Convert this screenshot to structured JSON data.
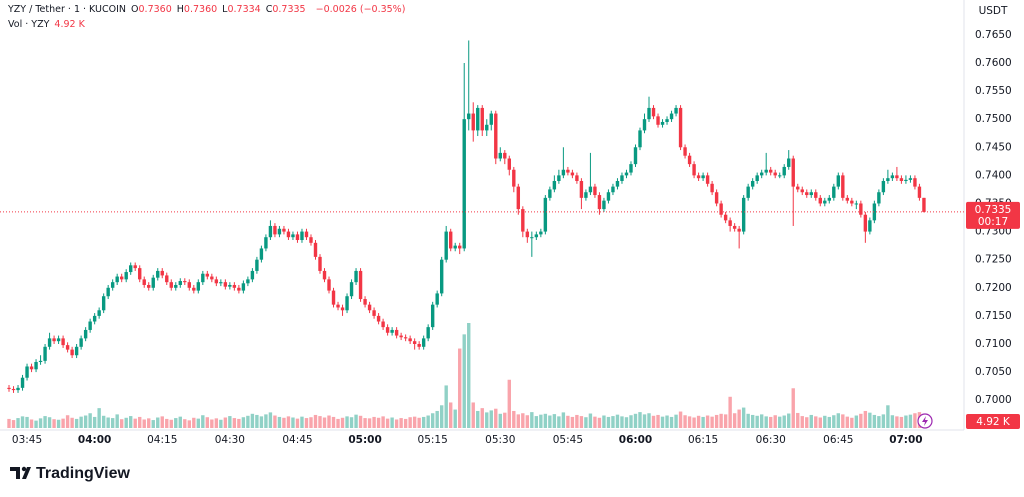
{
  "chart_data": {
    "type": "candlestick",
    "header": {
      "symbol": "YZY / Tether · 1 · KUCOIN",
      "fields": [
        {
          "key": "O",
          "label": "0.7360"
        },
        {
          "key": "H",
          "label": "0.7360"
        },
        {
          "key": "L",
          "label": "0.7334"
        },
        {
          "key": "C",
          "label": "0.7335"
        }
      ],
      "change": "−0.0026 (−0.35%)",
      "volume_title": "Vol · YZY"
    },
    "currency": "USDT",
    "countdown": "00:17",
    "volume_label": "4.92 K",
    "brand": "TradingView",
    "up_color": "#089981",
    "down_color": "#f23645",
    "grid": false,
    "xlim": [
      219,
      432
    ],
    "xticks": [
      {
        "value": 225,
        "label": "03:45"
      },
      {
        "value": 240,
        "label": "04:00"
      },
      {
        "value": 255,
        "label": "04:15"
      },
      {
        "value": 270,
        "label": "04:30"
      },
      {
        "value": 285,
        "label": "04:45"
      },
      {
        "value": 300,
        "label": "05:00"
      },
      {
        "value": 315,
        "label": "05:15"
      },
      {
        "value": 330,
        "label": "05:30"
      },
      {
        "value": 345,
        "label": "05:45"
      },
      {
        "value": 360,
        "label": "06:00"
      },
      {
        "value": 375,
        "label": "06:15"
      },
      {
        "value": 390,
        "label": "06:30"
      },
      {
        "value": 405,
        "label": "06:45"
      },
      {
        "value": 420,
        "label": "07:00"
      }
    ],
    "ylim": [
      0.6947,
      0.7712
    ],
    "yticks": [
      {
        "value": 0.7,
        "label": "0.7000"
      },
      {
        "value": 0.705,
        "label": "0.7050"
      },
      {
        "value": 0.71,
        "label": "0.7100"
      },
      {
        "value": 0.715,
        "label": "0.7150"
      },
      {
        "value": 0.72,
        "label": "0.7200"
      },
      {
        "value": 0.725,
        "label": "0.7250"
      },
      {
        "value": 0.73,
        "label": "0.7300"
      },
      {
        "value": 0.735,
        "label": "0.7350"
      },
      {
        "value": 0.74,
        "label": "0.7400"
      },
      {
        "value": 0.745,
        "label": "0.7450"
      },
      {
        "value": 0.75,
        "label": "0.7500"
      },
      {
        "value": 0.755,
        "label": "0.7550"
      },
      {
        "value": 0.76,
        "label": "0.7600"
      },
      {
        "value": 0.765,
        "label": "0.7650"
      }
    ],
    "x": [
      221,
      222,
      223,
      224,
      225,
      226,
      227,
      228,
      229,
      230,
      231,
      232,
      233,
      234,
      235,
      236,
      237,
      238,
      239,
      240,
      241,
      242,
      243,
      244,
      245,
      246,
      247,
      248,
      249,
      250,
      251,
      252,
      253,
      254,
      255,
      256,
      257,
      258,
      259,
      260,
      261,
      262,
      263,
      264,
      265,
      266,
      267,
      268,
      269,
      270,
      271,
      272,
      273,
      274,
      275,
      276,
      277,
      278,
      279,
      280,
      281,
      282,
      283,
      284,
      285,
      286,
      287,
      288,
      289,
      290,
      291,
      292,
      293,
      294,
      295,
      296,
      297,
      298,
      299,
      300,
      301,
      302,
      303,
      304,
      305,
      306,
      307,
      308,
      309,
      310,
      311,
      312,
      313,
      314,
      315,
      316,
      317,
      318,
      319,
      320,
      321,
      322,
      323,
      324,
      325,
      326,
      327,
      328,
      329,
      330,
      331,
      332,
      333,
      334,
      335,
      336,
      337,
      338,
      339,
      340,
      341,
      342,
      343,
      344,
      345,
      346,
      347,
      348,
      349,
      350,
      351,
      352,
      353,
      354,
      355,
      356,
      357,
      358,
      359,
      360,
      361,
      362,
      363,
      364,
      365,
      366,
      367,
      368,
      369,
      370,
      371,
      372,
      373,
      374,
      375,
      376,
      377,
      378,
      379,
      380,
      381,
      382,
      383,
      384,
      385,
      386,
      387,
      388,
      389,
      390,
      391,
      392,
      393,
      394,
      395,
      396,
      397,
      398,
      399,
      400,
      401,
      402,
      403,
      404,
      405,
      406,
      407,
      408,
      409,
      410,
      411,
      412,
      413,
      414,
      415,
      416,
      417,
      418,
      419,
      420,
      421,
      422,
      423,
      424
    ],
    "open": [
      0.7022,
      0.702,
      0.7018,
      0.7022,
      0.704,
      0.706,
      0.7055,
      0.7068,
      0.707,
      0.7095,
      0.711,
      0.7105,
      0.711,
      0.7098,
      0.709,
      0.708,
      0.7095,
      0.711,
      0.7125,
      0.714,
      0.715,
      0.716,
      0.7185,
      0.72,
      0.721,
      0.722,
      0.7215,
      0.7228,
      0.724,
      0.7235,
      0.7215,
      0.7205,
      0.72,
      0.7218,
      0.723,
      0.7222,
      0.721,
      0.72,
      0.7205,
      0.7212,
      0.721,
      0.72,
      0.7195,
      0.721,
      0.7225,
      0.722,
      0.7215,
      0.7208,
      0.721,
      0.7202,
      0.7205,
      0.72,
      0.7195,
      0.7208,
      0.7215,
      0.723,
      0.725,
      0.727,
      0.729,
      0.731,
      0.7295,
      0.7305,
      0.73,
      0.729,
      0.7295,
      0.7285,
      0.73,
      0.729,
      0.728,
      0.7255,
      0.723,
      0.7215,
      0.7195,
      0.717,
      0.7165,
      0.716,
      0.7185,
      0.721,
      0.723,
      0.718,
      0.717,
      0.716,
      0.715,
      0.714,
      0.713,
      0.712,
      0.7125,
      0.7115,
      0.7112,
      0.711,
      0.7105,
      0.71,
      0.7095,
      0.711,
      0.713,
      0.717,
      0.719,
      0.725,
      0.73,
      0.727,
      0.7275,
      0.727,
      0.75,
      0.751,
      0.748,
      0.752,
      0.748,
      0.749,
      0.751,
      0.743,
      0.744,
      0.743,
      0.741,
      0.738,
      0.734,
      0.73,
      0.729,
      0.729,
      0.7295,
      0.73,
      0.736,
      0.7375,
      0.739,
      0.74,
      0.741,
      0.7405,
      0.74,
      0.739,
      0.736,
      0.737,
      0.738,
      0.7365,
      0.734,
      0.7355,
      0.737,
      0.738,
      0.739,
      0.74,
      0.7405,
      0.742,
      0.745,
      0.748,
      0.75,
      0.752,
      0.7505,
      0.749,
      0.7495,
      0.75,
      0.751,
      0.752,
      0.745,
      0.7435,
      0.742,
      0.74,
      0.7395,
      0.74,
      0.7385,
      0.737,
      0.735,
      0.733,
      0.732,
      0.731,
      0.7305,
      0.73,
      0.736,
      0.738,
      0.739,
      0.74,
      0.7405,
      0.741,
      0.7405,
      0.74,
      0.74,
      0.7415,
      0.743,
      0.738,
      0.7375,
      0.737,
      0.7365,
      0.737,
      0.736,
      0.735,
      0.7355,
      0.736,
      0.738,
      0.74,
      0.736,
      0.7355,
      0.735,
      0.735,
      0.733,
      0.73,
      0.732,
      0.735,
      0.737,
      0.739,
      0.7395,
      0.74,
      0.7395,
      0.739,
      0.7392,
      0.7395,
      0.738,
      0.736
    ],
    "high": [
      0.7027,
      0.7025,
      0.7027,
      0.7045,
      0.7065,
      0.7065,
      0.7073,
      0.708,
      0.71,
      0.712,
      0.7115,
      0.7115,
      0.7115,
      0.7103,
      0.7095,
      0.71,
      0.7115,
      0.713,
      0.7145,
      0.7155,
      0.7165,
      0.719,
      0.7205,
      0.7215,
      0.7225,
      0.7225,
      0.7233,
      0.7245,
      0.7245,
      0.724,
      0.722,
      0.721,
      0.7223,
      0.7235,
      0.7235,
      0.7227,
      0.7215,
      0.721,
      0.7217,
      0.7217,
      0.7215,
      0.7205,
      0.7215,
      0.723,
      0.723,
      0.7225,
      0.722,
      0.7215,
      0.7215,
      0.721,
      0.721,
      0.7205,
      0.7213,
      0.722,
      0.7235,
      0.7255,
      0.7275,
      0.7295,
      0.732,
      0.7315,
      0.731,
      0.731,
      0.7305,
      0.73,
      0.73,
      0.7305,
      0.7305,
      0.7295,
      0.7285,
      0.726,
      0.7235,
      0.722,
      0.72,
      0.7175,
      0.717,
      0.719,
      0.7215,
      0.7235,
      0.7235,
      0.7185,
      0.7175,
      0.7165,
      0.7155,
      0.7145,
      0.7135,
      0.713,
      0.713,
      0.712,
      0.7117,
      0.7115,
      0.711,
      0.7105,
      0.7115,
      0.7135,
      0.7175,
      0.7195,
      0.7255,
      0.731,
      0.7305,
      0.728,
      0.728,
      0.76,
      0.764,
      0.753,
      0.7525,
      0.7525,
      0.75,
      0.7515,
      0.7515,
      0.745,
      0.7445,
      0.7435,
      0.7415,
      0.7385,
      0.7345,
      0.7305,
      0.73,
      0.73,
      0.7305,
      0.7365,
      0.738,
      0.74,
      0.741,
      0.745,
      0.7415,
      0.741,
      0.7405,
      0.7395,
      0.7375,
      0.744,
      0.7385,
      0.737,
      0.736,
      0.7375,
      0.7385,
      0.7395,
      0.7405,
      0.741,
      0.7425,
      0.7455,
      0.7485,
      0.751,
      0.754,
      0.7525,
      0.751,
      0.75,
      0.7505,
      0.7515,
      0.7525,
      0.7525,
      0.7455,
      0.744,
      0.7425,
      0.7405,
      0.7405,
      0.7405,
      0.739,
      0.7375,
      0.7355,
      0.7335,
      0.7325,
      0.7315,
      0.731,
      0.7365,
      0.7385,
      0.7395,
      0.7405,
      0.741,
      0.744,
      0.7415,
      0.741,
      0.7405,
      0.742,
      0.7445,
      0.7435,
      0.7385,
      0.738,
      0.7375,
      0.7375,
      0.7375,
      0.7365,
      0.736,
      0.7365,
      0.7385,
      0.7405,
      0.7405,
      0.7365,
      0.736,
      0.7355,
      0.7355,
      0.7335,
      0.7325,
      0.7355,
      0.7375,
      0.7395,
      0.741,
      0.7405,
      0.7415,
      0.74,
      0.74,
      0.74,
      0.74,
      0.7385,
      0.736
    ],
    "low": [
      0.7015,
      0.7013,
      0.7013,
      0.7017,
      0.7035,
      0.705,
      0.705,
      0.7063,
      0.7065,
      0.709,
      0.71,
      0.71,
      0.7093,
      0.7085,
      0.7075,
      0.7075,
      0.709,
      0.7105,
      0.712,
      0.7135,
      0.7145,
      0.7155,
      0.718,
      0.7195,
      0.7205,
      0.721,
      0.721,
      0.7223,
      0.723,
      0.721,
      0.72,
      0.7195,
      0.7195,
      0.7213,
      0.7217,
      0.7205,
      0.7195,
      0.7195,
      0.72,
      0.7205,
      0.7195,
      0.719,
      0.719,
      0.7205,
      0.7215,
      0.721,
      0.7203,
      0.7203,
      0.7197,
      0.7197,
      0.7195,
      0.719,
      0.719,
      0.7203,
      0.721,
      0.7225,
      0.7245,
      0.7265,
      0.7285,
      0.729,
      0.729,
      0.7295,
      0.7285,
      0.7285,
      0.728,
      0.728,
      0.7285,
      0.7275,
      0.725,
      0.7225,
      0.721,
      0.719,
      0.7165,
      0.716,
      0.715,
      0.7155,
      0.718,
      0.7205,
      0.7175,
      0.7165,
      0.7155,
      0.7145,
      0.7135,
      0.7125,
      0.7115,
      0.7115,
      0.711,
      0.7107,
      0.7105,
      0.71,
      0.709,
      0.709,
      0.709,
      0.7105,
      0.7125,
      0.7165,
      0.7185,
      0.7245,
      0.7265,
      0.7265,
      0.726,
      0.7265,
      0.748,
      0.746,
      0.747,
      0.747,
      0.747,
      0.748,
      0.742,
      0.7425,
      0.742,
      0.74,
      0.737,
      0.733,
      0.729,
      0.728,
      0.7255,
      0.7285,
      0.729,
      0.7295,
      0.7355,
      0.737,
      0.7385,
      0.7395,
      0.74,
      0.7395,
      0.7385,
      0.734,
      0.7355,
      0.7365,
      0.736,
      0.733,
      0.7335,
      0.735,
      0.7365,
      0.7375,
      0.7385,
      0.7395,
      0.74,
      0.7415,
      0.7445,
      0.7475,
      0.7495,
      0.75,
      0.7485,
      0.7485,
      0.749,
      0.7495,
      0.7505,
      0.7445,
      0.743,
      0.7415,
      0.7395,
      0.739,
      0.739,
      0.738,
      0.7365,
      0.7345,
      0.7325,
      0.7315,
      0.73,
      0.73,
      0.727,
      0.7295,
      0.7355,
      0.7375,
      0.7385,
      0.7395,
      0.74,
      0.74,
      0.7395,
      0.7395,
      0.7395,
      0.741,
      0.731,
      0.737,
      0.7365,
      0.736,
      0.736,
      0.7355,
      0.7345,
      0.7345,
      0.735,
      0.7355,
      0.7375,
      0.7355,
      0.735,
      0.7345,
      0.734,
      0.7325,
      0.728,
      0.7295,
      0.7315,
      0.7345,
      0.7365,
      0.7385,
      0.739,
      0.739,
      0.7385,
      0.7385,
      0.7387,
      0.7375,
      0.7355,
      0.7334
    ],
    "close": [
      0.702,
      0.7018,
      0.7022,
      0.704,
      0.706,
      0.7055,
      0.7068,
      0.707,
      0.7095,
      0.711,
      0.7105,
      0.711,
      0.7098,
      0.709,
      0.708,
      0.7095,
      0.711,
      0.7125,
      0.714,
      0.715,
      0.716,
      0.7185,
      0.72,
      0.721,
      0.722,
      0.7215,
      0.7228,
      0.724,
      0.7235,
      0.7215,
      0.7205,
      0.72,
      0.7218,
      0.723,
      0.7222,
      0.721,
      0.72,
      0.7205,
      0.7212,
      0.721,
      0.72,
      0.7195,
      0.721,
      0.7225,
      0.722,
      0.7215,
      0.7208,
      0.721,
      0.7202,
      0.7205,
      0.72,
      0.7195,
      0.7208,
      0.7215,
      0.723,
      0.725,
      0.727,
      0.729,
      0.731,
      0.7295,
      0.7305,
      0.73,
      0.729,
      0.7295,
      0.7285,
      0.73,
      0.729,
      0.728,
      0.7255,
      0.723,
      0.7215,
      0.7195,
      0.717,
      0.7165,
      0.716,
      0.7185,
      0.721,
      0.723,
      0.718,
      0.717,
      0.716,
      0.715,
      0.714,
      0.713,
      0.712,
      0.7125,
      0.7115,
      0.7112,
      0.711,
      0.7105,
      0.71,
      0.7095,
      0.711,
      0.713,
      0.717,
      0.719,
      0.725,
      0.73,
      0.727,
      0.7275,
      0.727,
      0.75,
      0.751,
      0.748,
      0.752,
      0.748,
      0.749,
      0.751,
      0.743,
      0.744,
      0.743,
      0.741,
      0.738,
      0.734,
      0.73,
      0.729,
      0.729,
      0.7295,
      0.73,
      0.736,
      0.7375,
      0.739,
      0.74,
      0.741,
      0.7405,
      0.74,
      0.739,
      0.736,
      0.737,
      0.738,
      0.7365,
      0.734,
      0.7355,
      0.737,
      0.738,
      0.739,
      0.74,
      0.7405,
      0.742,
      0.745,
      0.748,
      0.75,
      0.752,
      0.7505,
      0.749,
      0.7495,
      0.75,
      0.751,
      0.752,
      0.745,
      0.7435,
      0.742,
      0.74,
      0.7395,
      0.74,
      0.7385,
      0.737,
      0.735,
      0.733,
      0.732,
      0.731,
      0.7305,
      0.73,
      0.736,
      0.738,
      0.739,
      0.74,
      0.7405,
      0.741,
      0.7405,
      0.74,
      0.74,
      0.7415,
      0.743,
      0.738,
      0.7375,
      0.737,
      0.7365,
      0.737,
      0.736,
      0.735,
      0.7355,
      0.736,
      0.738,
      0.74,
      0.736,
      0.7355,
      0.735,
      0.735,
      0.733,
      0.73,
      0.732,
      0.735,
      0.737,
      0.739,
      0.7395,
      0.74,
      0.7395,
      0.739,
      0.7392,
      0.7395,
      0.738,
      0.736,
      0.7335
    ],
    "volume": [
      3200,
      2800,
      3500,
      4100,
      3900,
      3000,
      2600,
      3400,
      4200,
      3800,
      3100,
      2900,
      3300,
      4500,
      3600,
      3200,
      4000,
      4400,
      5200,
      3900,
      7000,
      4300,
      3700,
      3500,
      4800,
      3100,
      3600,
      4200,
      3300,
      3900,
      3000,
      3400,
      2800,
      3700,
      4100,
      3200,
      2900,
      3500,
      4000,
      3100,
      2700,
      3600,
      3300,
      4500,
      3800,
      3000,
      3400,
      2900,
      3700,
      4200,
      3500,
      3200,
      3800,
      4300,
      5000,
      4600,
      4100,
      4800,
      5500,
      4400,
      3900,
      3600,
      4100,
      3700,
      3300,
      4000,
      3500,
      3800,
      4600,
      4200,
      3700,
      4400,
      3900,
      3200,
      3600,
      4100,
      3800,
      4700,
      4300,
      3500,
      3400,
      3900,
      3600,
      4100,
      3300,
      3700,
      3000,
      3500,
      3200,
      3800,
      4000,
      3600,
      3900,
      4400,
      5200,
      6000,
      8000,
      15000,
      9000,
      6500,
      28000,
      33000,
      37000,
      9000,
      6000,
      7000,
      5500,
      6200,
      6800,
      5000,
      5400,
      17000,
      6000,
      4800,
      5200,
      4500,
      5600,
      4200,
      4700,
      5000,
      4400,
      4900,
      4100,
      5500,
      4300,
      3900,
      4600,
      4200,
      3800,
      5100,
      4000,
      3600,
      4400,
      3900,
      4200,
      4700,
      4100,
      3800,
      4500,
      5000,
      5600,
      4800,
      5200,
      4300,
      4600,
      4000,
      4400,
      3900,
      4700,
      5800,
      4500,
      4100,
      3700,
      4300,
      3900,
      4400,
      4000,
      4600,
      5000,
      4800,
      11000,
      5200,
      6500,
      7200,
      5000,
      4600,
      4300,
      4800,
      4100,
      3900,
      4500,
      4000,
      4400,
      5100,
      14000,
      5300,
      4200,
      3800,
      4600,
      4100,
      3700,
      4300,
      3900,
      4500,
      5200,
      4800,
      4000,
      3600,
      4400,
      5000,
      6000,
      5400,
      4600,
      4200,
      4800,
      8000,
      4500,
      4100,
      3900,
      4400,
      4700,
      5200,
      5600,
      4920
    ]
  }
}
